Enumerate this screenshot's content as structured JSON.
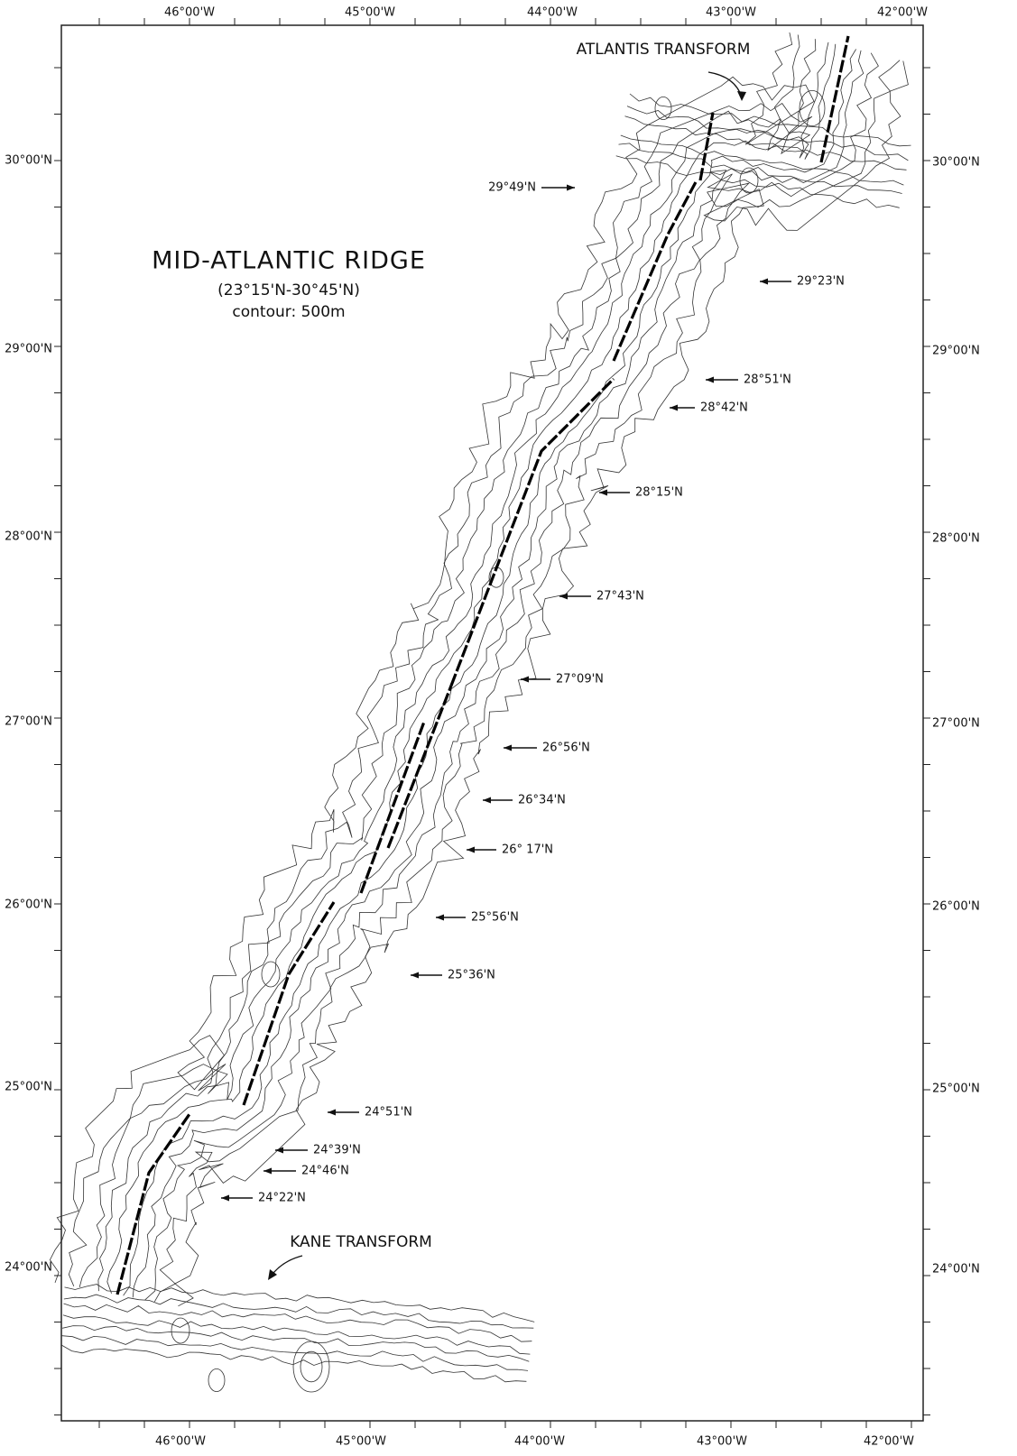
{
  "map": {
    "title": "MID-ATLANTIC RIDGE",
    "subtitle": "(23°15'N-30°45'N)",
    "contour_note": "contour: 500m",
    "top_labels": [
      "46°00'W",
      "45°00'W",
      "44°00'W",
      "43°00'W",
      "42°00'W"
    ],
    "bottom_labels": [
      "46°00'W",
      "45°00'W",
      "44°00'W",
      "43°00'W",
      "42°00'W"
    ],
    "left_labels": [
      "30°00'N",
      "29°00'N",
      "28°00'N",
      "27°00'N",
      "26°00'N",
      "25°00'N",
      "24°00'N"
    ],
    "right_labels": [
      "30°00'N",
      "29°00'N",
      "28°00'N",
      "27°00'N",
      "26°00'N",
      "25°00'N",
      "24°00'N"
    ],
    "annotations": [
      "ATLANTIS TRANSFORM",
      "KANE TRANSFORM"
    ],
    "segment_labels": [
      "29°49'N",
      "29°23'N",
      "28°51'N",
      "28°42'N",
      "28°15'N",
      "27°43'N",
      "27°09'N",
      "26°56'N",
      "26°34'N",
      "26° 17'N",
      "25°56'N",
      "25°36'N",
      "24°51'N",
      "24°39'N",
      "24°46'N",
      "24°22'N"
    ]
  }
}
